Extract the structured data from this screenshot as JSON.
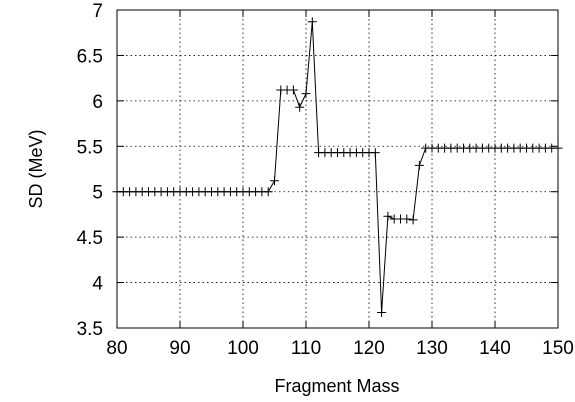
{
  "chart_data": {
    "type": "line",
    "xlabel": "Fragment Mass",
    "ylabel": "SD (MeV)",
    "xlim": [
      80,
      150
    ],
    "ylim": [
      3.5,
      7
    ],
    "xticks": [
      80,
      90,
      100,
      110,
      120,
      130,
      140,
      150
    ],
    "yticks": [
      3.5,
      4,
      4.5,
      5,
      5.5,
      6,
      6.5,
      7
    ],
    "xtick_labels": [
      "80",
      "90",
      "100",
      "110",
      "120",
      "130",
      "140",
      "150"
    ],
    "ytick_labels": [
      "3.5",
      "4",
      "4.5",
      "5",
      "5.5",
      "6",
      "6.5",
      "7"
    ],
    "grid": true,
    "marker": "plus",
    "series": [
      {
        "color": "#000000",
        "points": [
          [
            80,
            5.0
          ],
          [
            81,
            5.0
          ],
          [
            82,
            5.0
          ],
          [
            83,
            5.0
          ],
          [
            84,
            5.0
          ],
          [
            85,
            5.0
          ],
          [
            86,
            5.0
          ],
          [
            87,
            5.0
          ],
          [
            88,
            5.0
          ],
          [
            89,
            5.0
          ],
          [
            90,
            5.0
          ],
          [
            91,
            5.0
          ],
          [
            92,
            5.0
          ],
          [
            93,
            5.0
          ],
          [
            94,
            5.0
          ],
          [
            95,
            5.0
          ],
          [
            96,
            5.0
          ],
          [
            97,
            5.0
          ],
          [
            98,
            5.0
          ],
          [
            99,
            5.0
          ],
          [
            100,
            5.0
          ],
          [
            101,
            5.0
          ],
          [
            102,
            5.0
          ],
          [
            103,
            5.0
          ],
          [
            104,
            5.0
          ],
          [
            105,
            5.12
          ],
          [
            106,
            6.12
          ],
          [
            107,
            6.12
          ],
          [
            108,
            6.12
          ],
          [
            109,
            5.93
          ],
          [
            110,
            6.08
          ],
          [
            111,
            6.87
          ],
          [
            112,
            5.43
          ],
          [
            113,
            5.43
          ],
          [
            114,
            5.43
          ],
          [
            115,
            5.43
          ],
          [
            116,
            5.43
          ],
          [
            117,
            5.43
          ],
          [
            118,
            5.43
          ],
          [
            119,
            5.43
          ],
          [
            120,
            5.43
          ],
          [
            121,
            5.43
          ],
          [
            122,
            3.67
          ],
          [
            123,
            4.73
          ],
          [
            124,
            4.7
          ],
          [
            125,
            4.7
          ],
          [
            126,
            4.7
          ],
          [
            127,
            4.69
          ],
          [
            128,
            5.29
          ],
          [
            129,
            5.48
          ],
          [
            130,
            5.48
          ],
          [
            131,
            5.48
          ],
          [
            132,
            5.48
          ],
          [
            133,
            5.48
          ],
          [
            134,
            5.48
          ],
          [
            135,
            5.48
          ],
          [
            136,
            5.48
          ],
          [
            137,
            5.48
          ],
          [
            138,
            5.48
          ],
          [
            139,
            5.48
          ],
          [
            140,
            5.48
          ],
          [
            141,
            5.48
          ],
          [
            142,
            5.48
          ],
          [
            143,
            5.48
          ],
          [
            144,
            5.48
          ],
          [
            145,
            5.48
          ],
          [
            146,
            5.48
          ],
          [
            147,
            5.48
          ],
          [
            148,
            5.48
          ],
          [
            149,
            5.48
          ],
          [
            150,
            5.48
          ]
        ]
      }
    ]
  }
}
